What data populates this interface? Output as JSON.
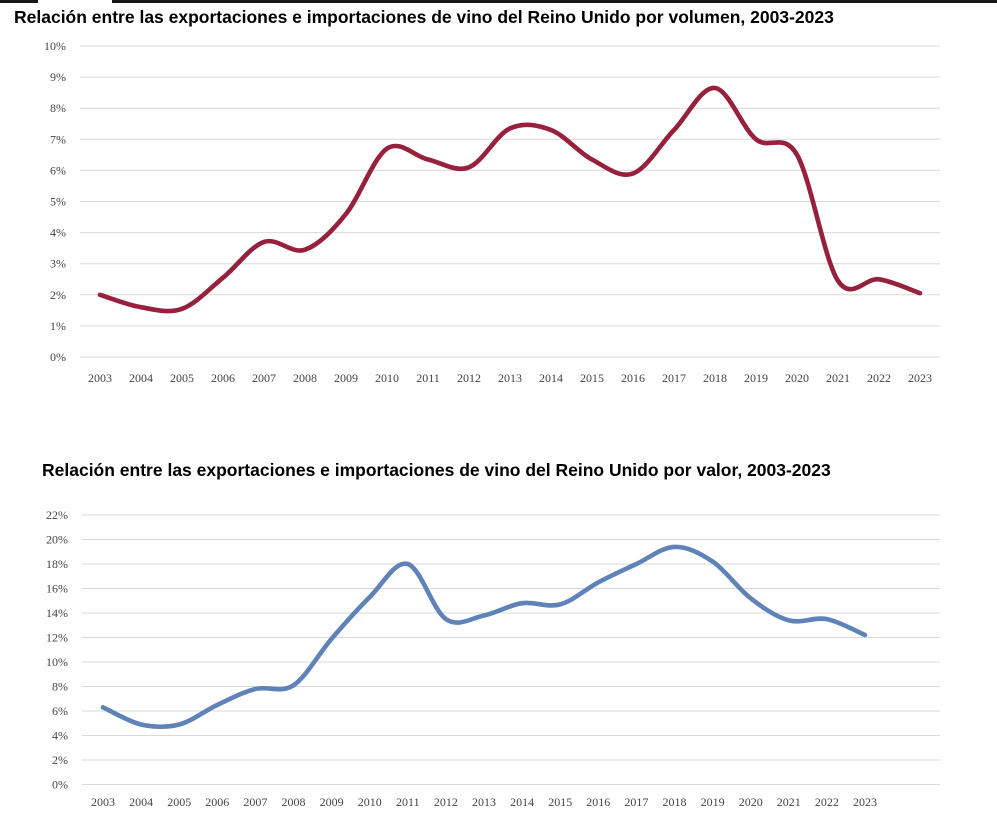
{
  "page": {
    "background": "#ffffff",
    "top_edge_color": "#161616"
  },
  "chart_data": [
    {
      "type": "line",
      "title": "Relación entre las exportaciones e importaciones de vino del Reino Unido por volumen, 2003-2023",
      "x": [
        2003,
        2004,
        2005,
        2006,
        2007,
        2008,
        2009,
        2010,
        2011,
        2012,
        2013,
        2014,
        2015,
        2016,
        2017,
        2018,
        2019,
        2020,
        2021,
        2022,
        2023
      ],
      "x_tick_labels": [
        "2003",
        "2004",
        "2005",
        "2006",
        "2007",
        "2008",
        "2009",
        "2010",
        "2011",
        "2012",
        "2013",
        "2014",
        "2015",
        "2016",
        "2017",
        "2018",
        "2019",
        "2020",
        "2021",
        "2022",
        "2023"
      ],
      "series": [
        {
          "color": "#97203d",
          "values": [
            2.0,
            1.6,
            1.55,
            2.55,
            3.7,
            3.45,
            4.6,
            6.7,
            6.35,
            6.1,
            7.35,
            7.3,
            6.35,
            5.9,
            7.3,
            8.65,
            7.0,
            6.5,
            2.45,
            2.5,
            2.05
          ]
        }
      ],
      "xlabel": "",
      "ylabel": "",
      "ylim": [
        0,
        10
      ],
      "y_tick_step": 1,
      "y_tick_labels": [
        "0%",
        "1%",
        "2%",
        "3%",
        "4%",
        "5%",
        "6%",
        "7%",
        "8%",
        "9%",
        "10%"
      ],
      "grid": true,
      "legend": "none",
      "smooth": true,
      "gridline_color": "#d9d9d9",
      "tick_label_color": "#454545"
    },
    {
      "type": "line",
      "title": "Relación entre las exportaciones e importaciones de vino del Reino Unido por valor, 2003-2023",
      "x": [
        2003,
        2004,
        2005,
        2006,
        2007,
        2008,
        2009,
        2010,
        2011,
        2012,
        2013,
        2014,
        2015,
        2016,
        2017,
        2018,
        2019,
        2020,
        2021,
        2022,
        2023
      ],
      "x_tick_labels": [
        "2003",
        "2004",
        "2005",
        "2006",
        "2007",
        "2008",
        "2009",
        "2010",
        "2011",
        "2012",
        "2013",
        "2014",
        "2015",
        "2016",
        "2017",
        "2018",
        "2019",
        "2020",
        "2021",
        "2022",
        "2023"
      ],
      "series": [
        {
          "color": "#5f82b8",
          "values": [
            6.3,
            4.9,
            4.9,
            6.5,
            7.8,
            8.1,
            11.9,
            15.3,
            18.0,
            13.5,
            13.8,
            14.8,
            14.7,
            16.5,
            18.0,
            19.4,
            18.2,
            15.2,
            13.4,
            13.5,
            12.2
          ]
        }
      ],
      "xlabel": "",
      "ylabel": "",
      "ylim": [
        0,
        22
      ],
      "y_tick_step": 2,
      "y_tick_labels": [
        "0%",
        "2%",
        "4%",
        "6%",
        "8%",
        "10%",
        "12%",
        "14%",
        "16%",
        "18%",
        "20%",
        "22%"
      ],
      "grid": true,
      "legend": "none",
      "smooth": true,
      "gridline_color": "#d9d9d9",
      "tick_label_color": "#454545"
    }
  ]
}
